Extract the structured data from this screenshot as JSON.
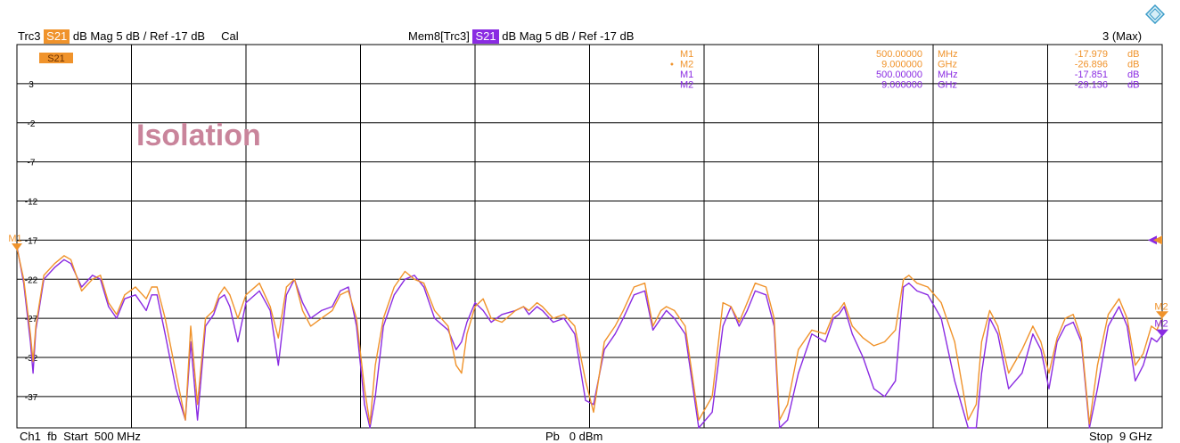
{
  "header": {
    "trace_name": "Trc3",
    "trace_param": "S21",
    "trace_format": "dB Mag",
    "trace_scale": "5 dB /",
    "trace_ref": "Ref -17 dB",
    "trace_cal": "Cal",
    "mem_name": "Mem8[Trc3]",
    "mem_param": "S21",
    "mem_format": "dB Mag",
    "mem_scale": "5 dB /",
    "mem_ref": "Ref -17 dB",
    "trace_count": "3 (Max)"
  },
  "footer": {
    "channel": "Ch1",
    "mode": "fb",
    "start_label": "Start",
    "start_value": "500 MHz",
    "power_label": "Pb",
    "power_value": "0 dBm",
    "stop_label": "Stop",
    "stop_value": "9 GHz"
  },
  "annotation": "Isolation",
  "trace_label": "S21",
  "marker_table": [
    {
      "name": "M1",
      "freq": "500.00000",
      "unit": "MHz",
      "value": "-17.979",
      "vunit": "dB",
      "color": "#f0932b",
      "active": false
    },
    {
      "name": "M2",
      "freq": "9.000000",
      "unit": "GHz",
      "value": "-26.896",
      "vunit": "dB",
      "color": "#f0932b",
      "active": true
    },
    {
      "name": "M1",
      "freq": "500.00000",
      "unit": "MHz",
      "value": "-17.851",
      "vunit": "dB",
      "color": "#8a2be2",
      "active": false
    },
    {
      "name": "M2",
      "freq": "9.000000",
      "unit": "GHz",
      "value": "-29.136",
      "vunit": "dB",
      "color": "#8a2be2",
      "active": false
    }
  ],
  "colors": {
    "trace": "#f0932b",
    "memory": "#8a2be2",
    "annotation": "#c9849b"
  },
  "chart_data": {
    "type": "line",
    "title": "Isolation",
    "xlabel": "",
    "ylabel": "",
    "xlim": [
      0.5,
      9.0
    ],
    "ylim": [
      -41,
      8
    ],
    "y_ticks": [
      3,
      -2,
      -7,
      -12,
      -17,
      -22,
      -27,
      -32,
      -37
    ],
    "ref_level": -17,
    "grid": true,
    "series": [
      {
        "name": "Trc3 S21",
        "color": "#f0932b",
        "x": [
          0.5,
          0.55,
          0.6,
          0.62,
          0.64,
          0.7,
          0.78,
          0.85,
          0.9,
          0.98,
          1.06,
          1.12,
          1.18,
          1.24,
          1.3,
          1.38,
          1.46,
          1.5,
          1.54,
          1.6,
          1.68,
          1.75,
          1.79,
          1.84,
          1.9,
          1.96,
          2.0,
          2.04,
          2.08,
          2.14,
          2.2,
          2.3,
          2.38,
          2.44,
          2.5,
          2.56,
          2.62,
          2.68,
          2.76,
          2.84,
          2.9,
          2.96,
          3.02,
          3.08,
          3.12,
          3.16,
          3.22,
          3.3,
          3.38,
          3.45,
          3.52,
          3.6,
          3.7,
          3.76,
          3.8,
          3.84,
          3.9,
          3.96,
          4.02,
          4.1,
          4.2,
          4.26,
          4.3,
          4.36,
          4.4,
          4.48,
          4.56,
          4.64,
          4.72,
          4.78,
          4.86,
          4.94,
          5.0,
          5.08,
          5.16,
          5.22,
          5.28,
          5.32,
          5.38,
          5.46,
          5.56,
          5.66,
          5.74,
          5.8,
          5.86,
          5.92,
          5.98,
          6.06,
          6.12,
          6.16,
          6.22,
          6.3,
          6.4,
          6.5,
          6.56,
          6.6,
          6.64,
          6.7,
          6.78,
          6.86,
          6.94,
          7.02,
          7.08,
          7.12,
          7.18,
          7.26,
          7.36,
          7.46,
          7.56,
          7.62,
          7.66,
          7.72,
          7.78,
          7.86,
          7.96,
          8.04,
          8.1,
          8.16,
          8.22,
          8.28,
          8.34,
          8.4,
          8.46,
          8.52,
          8.6,
          8.68,
          8.74,
          8.8,
          8.86,
          8.92,
          8.96,
          9.0
        ],
        "y": [
          -18.0,
          -22.0,
          -29.0,
          -32.5,
          -28.0,
          -21.5,
          -20.0,
          -19.0,
          -19.5,
          -23.5,
          -22.0,
          -21.5,
          -25.0,
          -26.5,
          -24.0,
          -23.0,
          -24.5,
          -23.0,
          -23.0,
          -27.0,
          -34.0,
          -40.0,
          -28.0,
          -38.0,
          -27.0,
          -26.0,
          -24.0,
          -23.0,
          -24.0,
          -27.0,
          -24.0,
          -22.5,
          -25.5,
          -29.5,
          -23.0,
          -22.0,
          -26.0,
          -28.0,
          -27.0,
          -26.0,
          -24.0,
          -23.5,
          -27.0,
          -36.0,
          -40.5,
          -33.0,
          -27.0,
          -23.0,
          -21.0,
          -22.0,
          -22.5,
          -26.0,
          -28.0,
          -33.0,
          -34.0,
          -29.0,
          -25.5,
          -24.5,
          -27.0,
          -27.5,
          -26.0,
          -25.5,
          -26.0,
          -25.0,
          -25.5,
          -27.0,
          -26.5,
          -28.0,
          -35.0,
          -39.0,
          -30.0,
          -28.0,
          -26.0,
          -23.0,
          -22.5,
          -28.0,
          -26.0,
          -25.5,
          -26.0,
          -28.0,
          -40.0,
          -37.0,
          -25.0,
          -25.5,
          -27.5,
          -25.0,
          -22.5,
          -23.0,
          -27.0,
          -40.0,
          -38.0,
          -31.0,
          -28.5,
          -29.0,
          -26.5,
          -26.0,
          -25.0,
          -28.0,
          -29.5,
          -30.5,
          -30.0,
          -28.5,
          -22.0,
          -21.5,
          -22.5,
          -23.0,
          -25.0,
          -30.0,
          -40.0,
          -38.0,
          -30.0,
          -26.0,
          -28.0,
          -34.0,
          -31.0,
          -28.0,
          -30.0,
          -34.0,
          -29.5,
          -27.0,
          -26.5,
          -29.5,
          -40.5,
          -33.0,
          -26.5,
          -24.5,
          -27.0,
          -33.0,
          -31.5,
          -28.0,
          -28.5,
          -26.9
        ]
      },
      {
        "name": "Mem8[Trc3] S21",
        "color": "#8a2be2",
        "x": [
          0.5,
          0.55,
          0.6,
          0.62,
          0.64,
          0.7,
          0.78,
          0.85,
          0.9,
          0.98,
          1.06,
          1.12,
          1.18,
          1.24,
          1.3,
          1.38,
          1.46,
          1.5,
          1.54,
          1.6,
          1.68,
          1.75,
          1.79,
          1.84,
          1.9,
          1.96,
          2.0,
          2.04,
          2.08,
          2.14,
          2.2,
          2.3,
          2.38,
          2.44,
          2.5,
          2.56,
          2.62,
          2.68,
          2.76,
          2.84,
          2.9,
          2.96,
          3.02,
          3.08,
          3.12,
          3.16,
          3.22,
          3.3,
          3.38,
          3.45,
          3.52,
          3.6,
          3.7,
          3.76,
          3.8,
          3.84,
          3.9,
          3.96,
          4.02,
          4.1,
          4.2,
          4.26,
          4.3,
          4.36,
          4.4,
          4.48,
          4.56,
          4.64,
          4.72,
          4.78,
          4.86,
          4.94,
          5.0,
          5.08,
          5.16,
          5.22,
          5.28,
          5.32,
          5.38,
          5.46,
          5.56,
          5.66,
          5.74,
          5.8,
          5.86,
          5.92,
          5.98,
          6.06,
          6.12,
          6.16,
          6.22,
          6.3,
          6.4,
          6.5,
          6.56,
          6.6,
          6.64,
          6.7,
          6.78,
          6.86,
          6.94,
          7.02,
          7.08,
          7.12,
          7.18,
          7.26,
          7.36,
          7.46,
          7.56,
          7.62,
          7.66,
          7.72,
          7.78,
          7.86,
          7.96,
          8.04,
          8.1,
          8.16,
          8.22,
          8.28,
          8.34,
          8.4,
          8.46,
          8.52,
          8.6,
          8.68,
          8.74,
          8.8,
          8.86,
          8.92,
          8.96,
          9.0
        ],
        "y": [
          -17.8,
          -22.5,
          -30.0,
          -34.0,
          -28.5,
          -22.0,
          -20.5,
          -19.5,
          -20.0,
          -23.0,
          -21.5,
          -22.0,
          -25.5,
          -27.0,
          -24.5,
          -24.0,
          -26.0,
          -24.0,
          -24.0,
          -29.0,
          -36.0,
          -40.0,
          -30.0,
          -40.0,
          -28.0,
          -26.5,
          -24.5,
          -24.0,
          -25.5,
          -30.0,
          -25.0,
          -23.5,
          -26.0,
          -33.0,
          -24.0,
          -22.0,
          -25.0,
          -27.0,
          -26.0,
          -25.5,
          -23.5,
          -23.0,
          -28.0,
          -38.0,
          -41.0,
          -37.0,
          -28.0,
          -24.0,
          -22.0,
          -21.5,
          -23.0,
          -27.0,
          -28.5,
          -31.0,
          -30.0,
          -27.5,
          -25.0,
          -26.0,
          -27.5,
          -26.5,
          -26.0,
          -25.5,
          -26.5,
          -25.5,
          -26.0,
          -27.5,
          -27.0,
          -29.0,
          -37.5,
          -38.0,
          -31.0,
          -29.0,
          -27.0,
          -24.0,
          -23.5,
          -28.5,
          -27.0,
          -26.0,
          -27.0,
          -29.0,
          -41.0,
          -39.0,
          -28.0,
          -25.5,
          -28.0,
          -26.0,
          -23.5,
          -24.0,
          -28.0,
          -41.0,
          -40.0,
          -34.0,
          -29.0,
          -30.0,
          -27.0,
          -26.5,
          -25.5,
          -29.0,
          -32.0,
          -36.0,
          -37.0,
          -35.0,
          -23.0,
          -22.5,
          -23.5,
          -24.0,
          -27.0,
          -35.0,
          -41.0,
          -41.0,
          -34.0,
          -27.0,
          -29.0,
          -36.0,
          -34.0,
          -29.0,
          -31.0,
          -36.0,
          -30.0,
          -28.0,
          -27.5,
          -30.0,
          -41.0,
          -36.0,
          -28.0,
          -25.5,
          -28.0,
          -35.0,
          -33.0,
          -29.5,
          -30.0,
          -29.1
        ]
      }
    ]
  }
}
